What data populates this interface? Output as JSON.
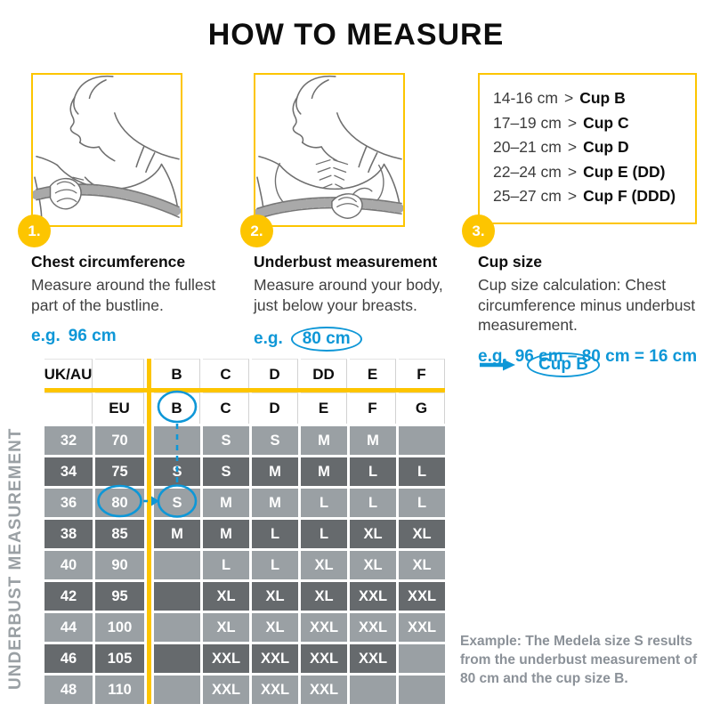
{
  "title": "HOW TO MEASURE",
  "colors": {
    "accent_yellow": "#FDC500",
    "accent_blue": "#0E97D7",
    "row_light_gray": "#9AA0A4",
    "row_dark_gray": "#666A6D",
    "note_gray": "#8B9198"
  },
  "steps": [
    {
      "number": "1.",
      "heading": "Chest circumference",
      "body": "Measure around the fullest part of the bustline.",
      "example_prefix": "e.g.",
      "example_value": "96 cm"
    },
    {
      "number": "2.",
      "heading": "Underbust measurement",
      "body": "Measure around your body, just below your breasts.",
      "example_prefix": "e.g.",
      "example_value": "80 cm"
    },
    {
      "number": "3.",
      "heading": "Cup size",
      "body": "Cup size calculation: Chest circumference minus underbust measurement.",
      "example_prefix": "e.g.",
      "example_value": "96 cm – 80 cm = 16 cm",
      "result_label": "Cup B"
    }
  ],
  "cup_guide": {
    "rows": [
      {
        "range": "14-16 cm",
        "sep": ">",
        "cup": "Cup B"
      },
      {
        "range": "17–19 cm",
        "sep": ">",
        "cup": "Cup C"
      },
      {
        "range": "20–21 cm",
        "sep": ">",
        "cup": "Cup D"
      },
      {
        "range": "22–24 cm",
        "sep": ">",
        "cup": "Cup E (DD)"
      },
      {
        "range": "25–27 cm",
        "sep": ">",
        "cup": "Cup F (DDD)"
      }
    ]
  },
  "size_chart": {
    "vertical_label": "UNDERBUST MEASUREMENT",
    "header_row1": [
      "UK/AU",
      "",
      "B",
      "C",
      "D",
      "DD",
      "E",
      "F"
    ],
    "header_row2": [
      "",
      "EU",
      "B",
      "C",
      "D",
      "E",
      "F",
      "G"
    ],
    "rows": [
      {
        "ukau": "32",
        "eu": "70",
        "sizes": [
          "",
          "S",
          "S",
          "M",
          "M",
          ""
        ]
      },
      {
        "ukau": "34",
        "eu": "75",
        "sizes": [
          "S",
          "S",
          "M",
          "M",
          "L",
          "L"
        ]
      },
      {
        "ukau": "36",
        "eu": "80",
        "sizes": [
          "S",
          "M",
          "M",
          "L",
          "L",
          "L"
        ]
      },
      {
        "ukau": "38",
        "eu": "85",
        "sizes": [
          "M",
          "M",
          "L",
          "L",
          "XL",
          "XL"
        ]
      },
      {
        "ukau": "40",
        "eu": "90",
        "sizes": [
          "",
          "L",
          "L",
          "XL",
          "XL",
          "XL"
        ]
      },
      {
        "ukau": "42",
        "eu": "95",
        "sizes": [
          "",
          "XL",
          "XL",
          "XL",
          "XXL",
          "XXL"
        ]
      },
      {
        "ukau": "44",
        "eu": "100",
        "sizes": [
          "",
          "XL",
          "XL",
          "XXL",
          "XXL",
          "XXL"
        ]
      },
      {
        "ukau": "46",
        "eu": "105",
        "sizes": [
          "",
          "XXL",
          "XXL",
          "XXL",
          "XXL",
          ""
        ]
      },
      {
        "ukau": "48",
        "eu": "110",
        "sizes": [
          "",
          "XXL",
          "XXL",
          "XXL",
          "",
          ""
        ]
      }
    ],
    "highlight": {
      "header_cup": "B",
      "eu_value": "80",
      "result_size": "S"
    }
  },
  "note": "Example: The Medela size S results from the underbust measurement of 80 cm and the cup size B."
}
